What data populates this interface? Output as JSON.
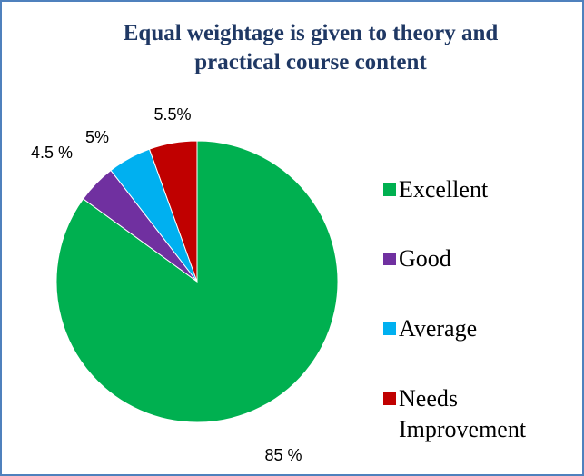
{
  "chart_data": {
    "type": "pie",
    "title": "Equal weightage is given to theory and practical course content",
    "categories": [
      "Excellent",
      "Good",
      "Average",
      "Needs Improvement"
    ],
    "values": [
      85,
      4.5,
      5,
      5.5
    ],
    "value_labels": [
      "85 %",
      "4.5 %",
      "5%",
      "5.5%"
    ],
    "colors": [
      "#00b050",
      "#7030a0",
      "#00b0f0",
      "#c00000"
    ],
    "legend": "right"
  }
}
